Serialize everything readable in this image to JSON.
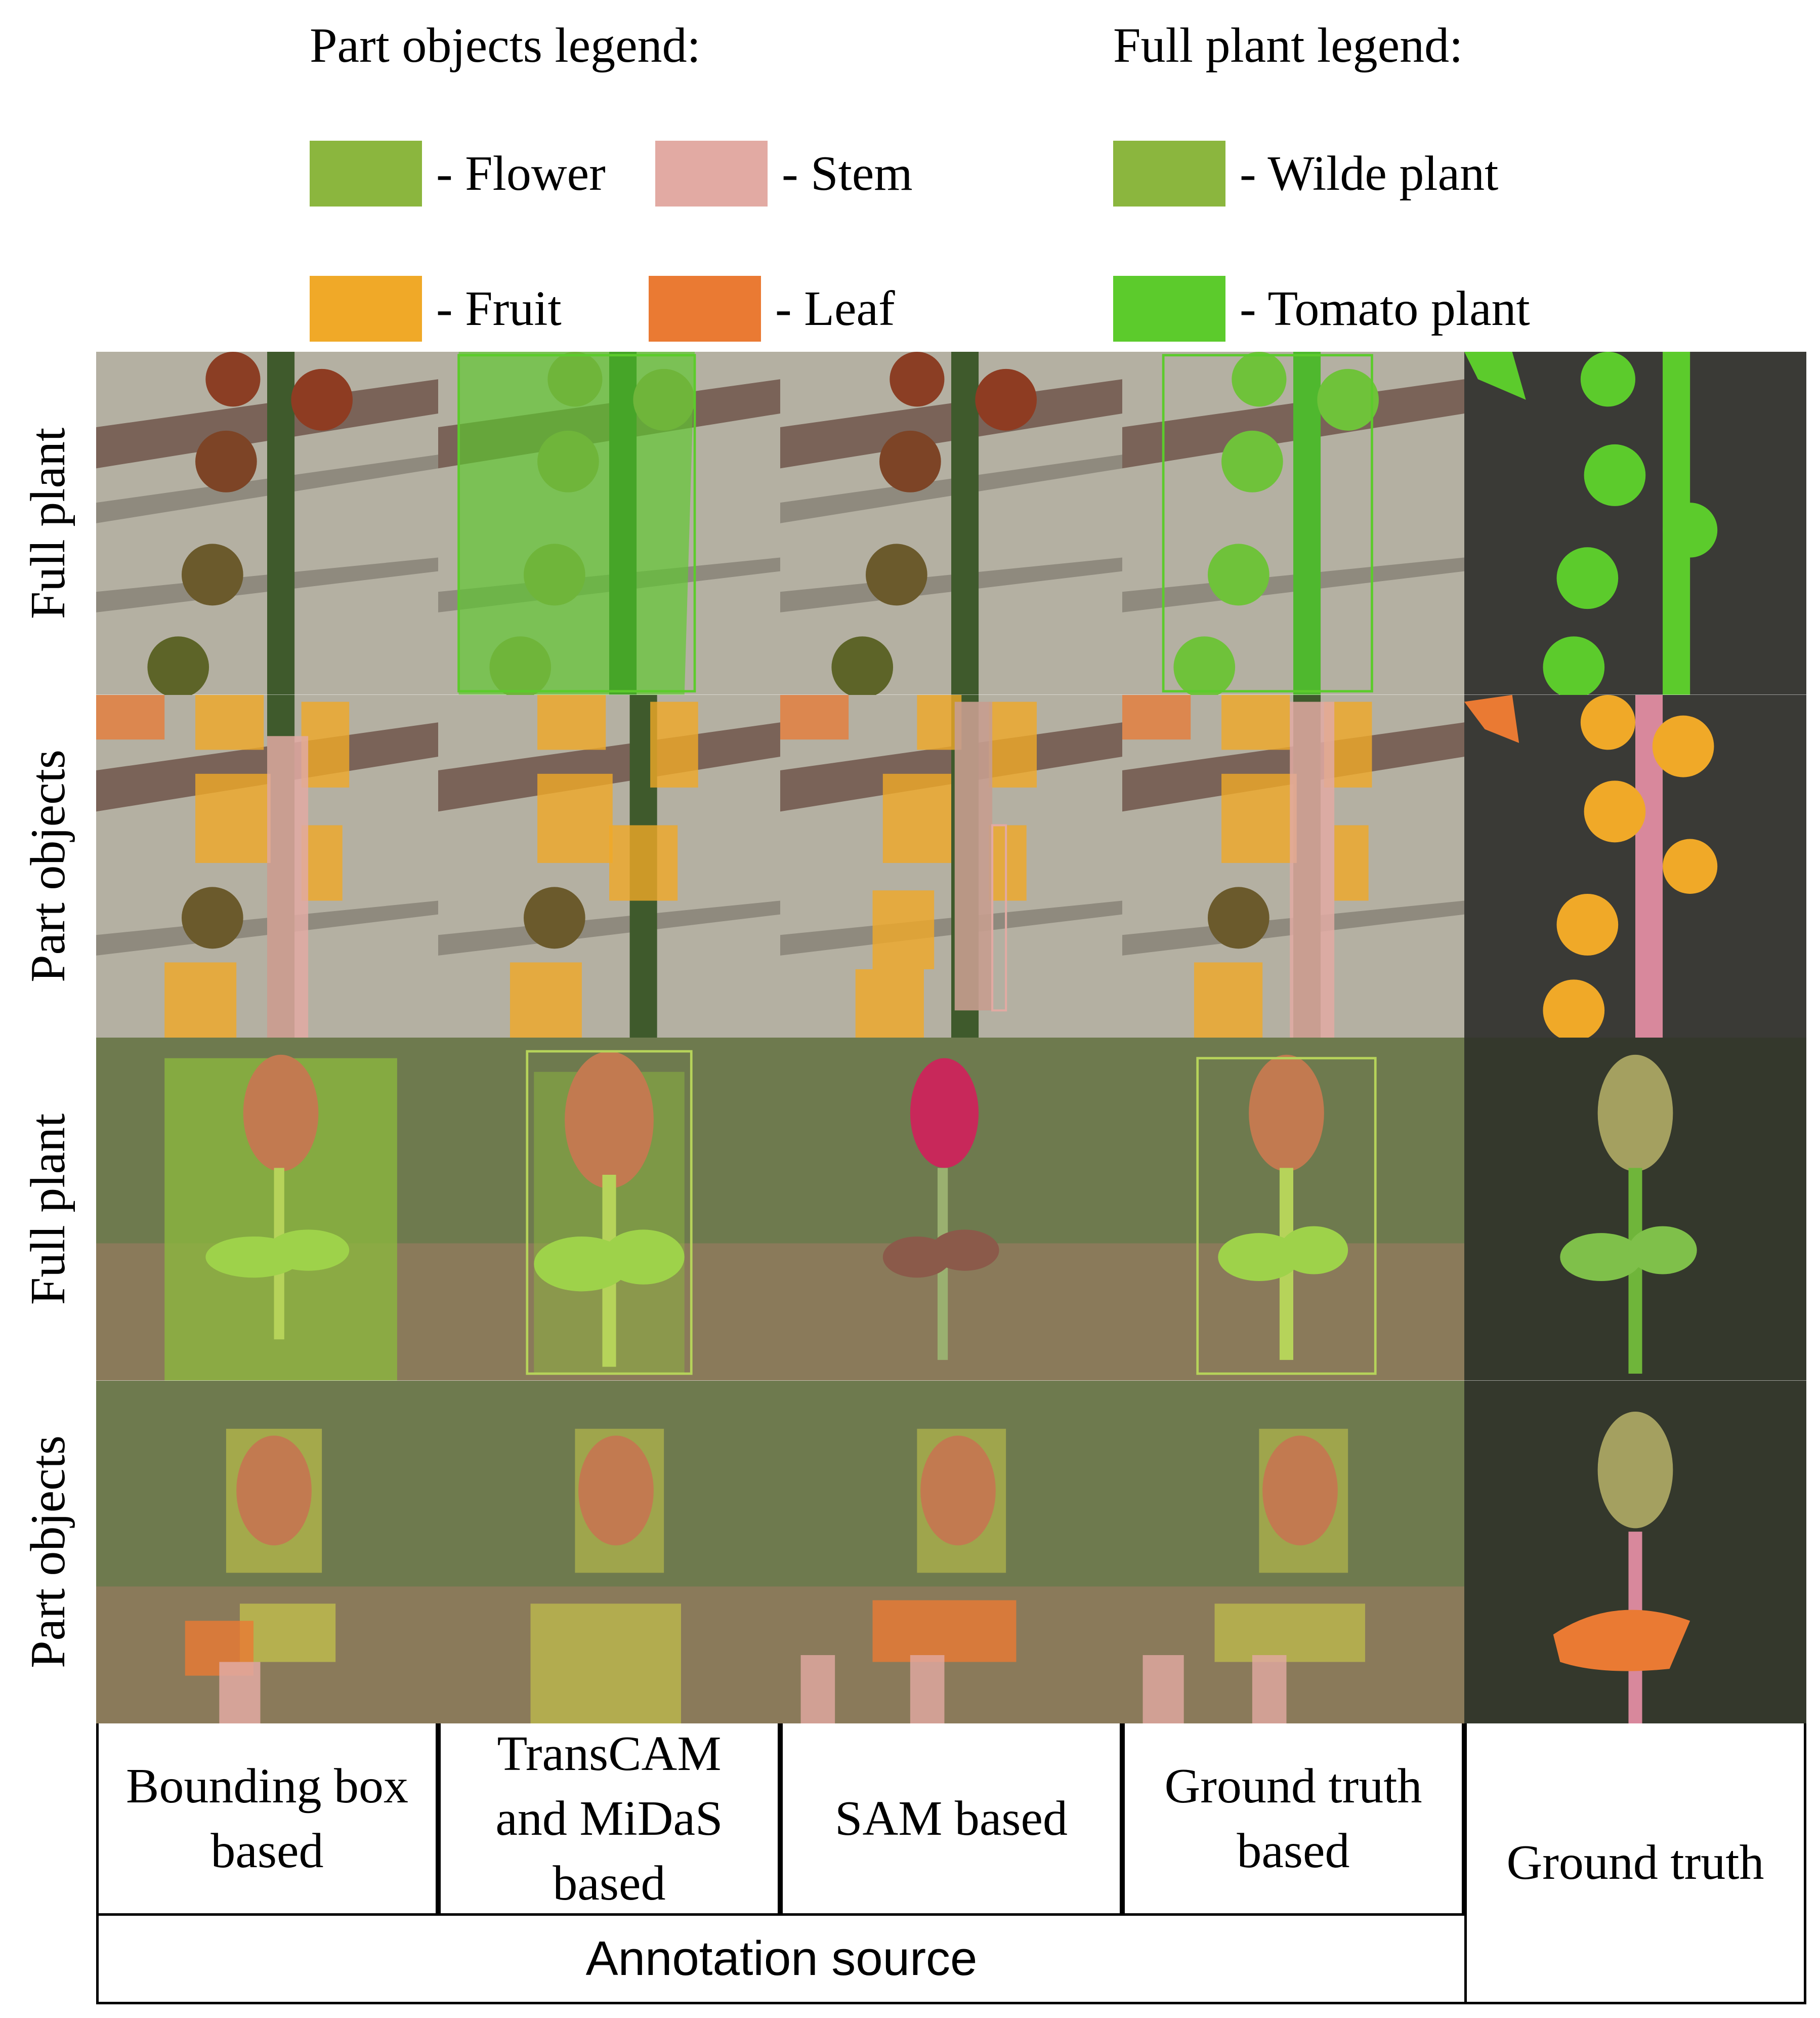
{
  "legends": {
    "part_title": "Part objects legend:",
    "full_title": "Full plant legend:",
    "part_items": [
      {
        "label": "- Flower",
        "color": "#8bb63e"
      },
      {
        "label": "- Stem",
        "color": "#e2aaa3"
      },
      {
        "label": "- Fruit",
        "color": "#f0a928"
      },
      {
        "label": "- Leaf",
        "color": "#ea7a33"
      }
    ],
    "full_items": [
      {
        "label": "- Wilde plant",
        "color": "#8bb63e"
      },
      {
        "label": "- Tomato plant",
        "color": "#5ccb2c"
      }
    ]
  },
  "row_labels": [
    "Full plant",
    "Part objects",
    "Full plant",
    "Part objects"
  ],
  "columns": [
    "Bounding box\nbased",
    "TransCAM\nand MiDaS\nbased",
    "SAM based",
    "Ground truth\nbased",
    "Ground truth"
  ],
  "annotation_source_label": "Annotation source",
  "colors": {
    "flower": "#8bb63e",
    "stem": "#e2aaa3",
    "fruit": "#f0a928",
    "leaf": "#ea7a33",
    "wild_plant": "#8bb63e",
    "tomato_plant": "#5ccb2c"
  }
}
